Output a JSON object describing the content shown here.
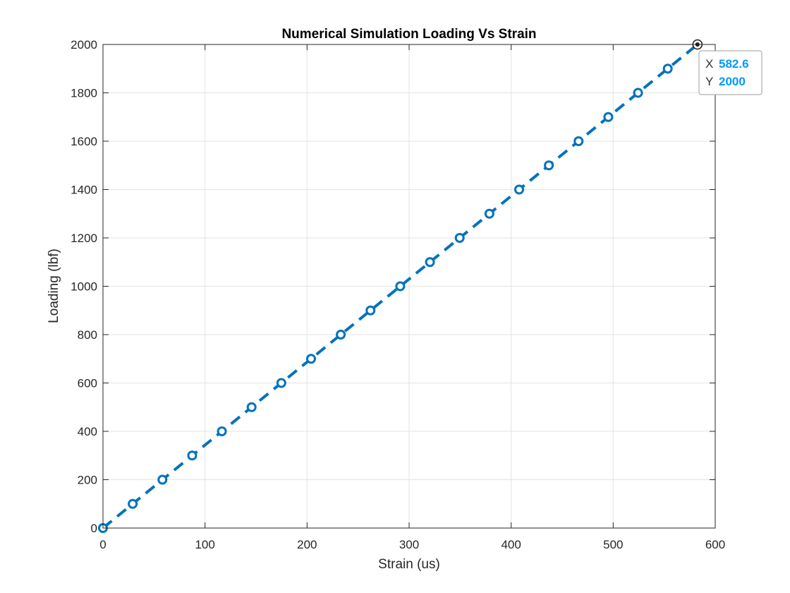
{
  "colors": {
    "series": "#0072BD",
    "grid": "#e3e3e3",
    "axis": "#262626",
    "datatip_value": "#0099ff",
    "datatip_border": "#9e9e9e",
    "datatip_bg": "#ffffff"
  },
  "chart_data": {
    "type": "line",
    "title": "Numerical Simulation Loading Vs Strain",
    "xlabel": "Strain (us)",
    "ylabel": "Loading (lbf)",
    "xlim": [
      0,
      600
    ],
    "ylim": [
      0,
      2000
    ],
    "xticks": [
      0,
      100,
      200,
      300,
      400,
      500,
      600
    ],
    "yticks": [
      0,
      200,
      400,
      600,
      800,
      1000,
      1200,
      1400,
      1600,
      1800,
      2000
    ],
    "xtick_labels": [
      "0",
      "100",
      "200",
      "300",
      "400",
      "500",
      "600"
    ],
    "ytick_labels": [
      "0",
      "200",
      "400",
      "600",
      "800",
      "1000",
      "1200",
      "1400",
      "1600",
      "1800",
      "2000"
    ],
    "grid": true,
    "box": true,
    "series": [
      {
        "line_style": "dashed",
        "marker": "circle",
        "x": [
          0,
          29.13,
          58.26,
          87.39,
          116.52,
          145.65,
          174.78,
          203.91,
          233.04,
          262.17,
          291.3,
          320.43,
          349.56,
          378.69,
          407.82,
          436.95,
          466.08,
          495.21,
          524.34,
          553.47,
          582.6
        ],
        "y": [
          0,
          100,
          200,
          300,
          400,
          500,
          600,
          700,
          800,
          900,
          1000,
          1100,
          1200,
          1300,
          1400,
          1500,
          1600,
          1700,
          1800,
          1900,
          2000
        ]
      }
    ],
    "datatip": {
      "x_key": "X",
      "x_value": "582.6",
      "y_key": "Y",
      "y_value": "2000",
      "point_x": 582.6,
      "point_y": 2000
    }
  }
}
